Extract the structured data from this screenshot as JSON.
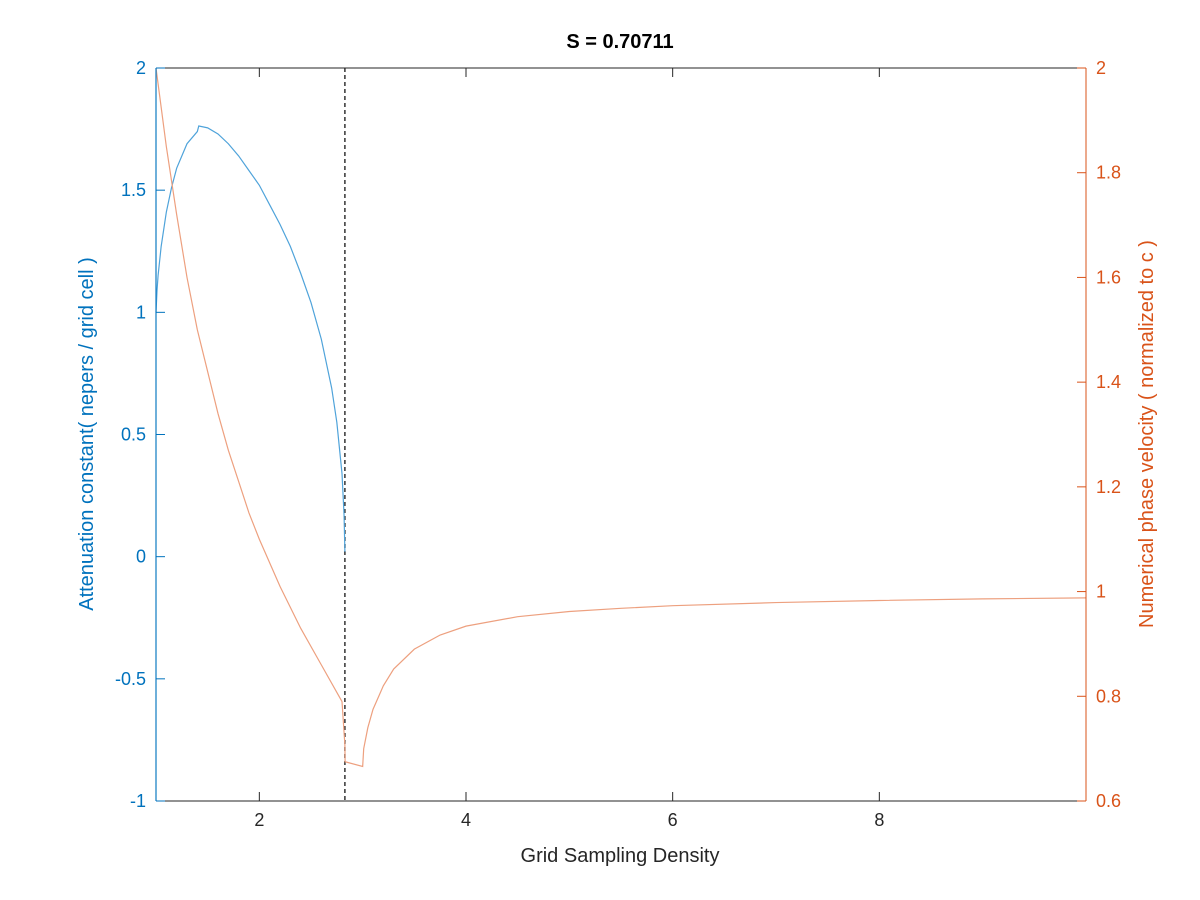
{
  "colors": {
    "left_axis": "#0072BD",
    "right_axis": "#D95319",
    "attenuation_line": "#4FA3DA",
    "phase_velocity_line": "#EDA07F",
    "cutoff_line": "#333333",
    "bottom_axis": "#262626"
  },
  "chart_data": {
    "type": "line",
    "title": "S = 0.70711",
    "xlabel": "Grid Sampling Density",
    "ylabel_left": "Attenuation constant( nepers / grid cell )",
    "ylabel_right": "Numerical phase velocity ( normalized to c )",
    "xlim": [
      1,
      10
    ],
    "ylim_left": [
      -1,
      2
    ],
    "ylim_right": [
      0.6,
      2
    ],
    "x_ticks": [
      2,
      4,
      6,
      8
    ],
    "x_tick_labels": [
      "2",
      "4",
      "6",
      "8"
    ],
    "y_left_ticks": [
      -1,
      -0.5,
      0,
      0.5,
      1,
      1.5,
      2
    ],
    "y_left_tick_labels": [
      "-1",
      "-0.5",
      "0",
      "0.5",
      "1",
      "1.5",
      "2"
    ],
    "y_right_ticks": [
      0.6,
      0.8,
      1,
      1.2,
      1.4,
      1.6,
      1.8,
      2
    ],
    "y_right_tick_labels": [
      "0.6",
      "0.8",
      "1",
      "1.2",
      "1.4",
      "1.6",
      "1.8",
      "2"
    ],
    "grid": false,
    "series": [
      {
        "axis": "left",
        "x": [
          1,
          1.01,
          1.02,
          1.05,
          1.1,
          1.15,
          1.2,
          1.3,
          1.4,
          1.414,
          1.5,
          1.6,
          1.7,
          1.8,
          1.9,
          2.0,
          2.1,
          2.2,
          2.3,
          2.4,
          2.5,
          2.6,
          2.7,
          2.75,
          2.8,
          2.82,
          2.828
        ],
        "y": [
          1.0,
          1.09,
          1.15,
          1.27,
          1.41,
          1.51,
          1.59,
          1.69,
          1.74,
          1.7627,
          1.755,
          1.73,
          1.69,
          1.64,
          1.58,
          1.52,
          1.44,
          1.36,
          1.27,
          1.16,
          1.04,
          0.89,
          0.69,
          0.55,
          0.34,
          0.17,
          0.02
        ]
      },
      {
        "axis": "right",
        "x": [
          1,
          1.1,
          1.2,
          1.3,
          1.4,
          1.5,
          1.6,
          1.7,
          1.8,
          1.9,
          2.0,
          2.2,
          2.4,
          2.6,
          2.8,
          2.828,
          2.83,
          3.0,
          3.01,
          3.05,
          3.1,
          3.2,
          3.3,
          3.5,
          3.75,
          4,
          4.5,
          5,
          5.5,
          6,
          7,
          8,
          9,
          10
        ],
        "y": [
          2.0,
          1.85,
          1.72,
          1.6,
          1.5,
          1.42,
          1.34,
          1.27,
          1.21,
          1.15,
          1.1,
          1.01,
          0.93,
          0.86,
          0.79,
          0.707,
          0.675,
          0.666,
          0.7,
          0.74,
          0.775,
          0.82,
          0.852,
          0.89,
          0.917,
          0.934,
          0.952,
          0.962,
          0.968,
          0.973,
          0.979,
          0.983,
          0.986,
          0.988
        ]
      }
    ],
    "cutoff_x": 2.828
  }
}
